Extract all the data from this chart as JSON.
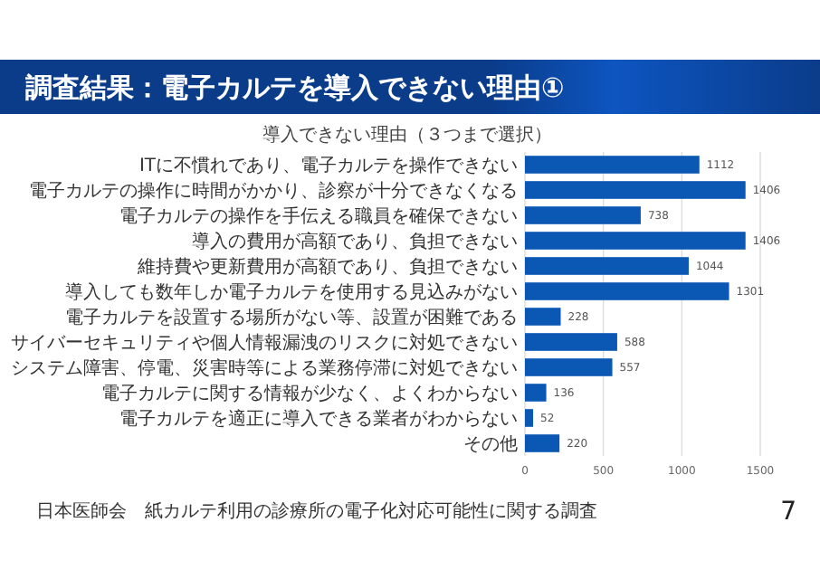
{
  "chart_data": {
    "type": "bar",
    "orientation": "horizontal",
    "title": "調査結果：電子カルテを導入できない理由①",
    "subtitle": "導入できない理由（３つまで選択）",
    "categories": [
      "ITに不慣れであり、電子カルテを操作できない",
      "電子カルテの操作に時間がかかり、診察が十分できなくなる",
      "電子カルテの操作を手伝える職員を確保できない",
      "導入の費用が高額であり、負担できない",
      "維持費や更新費用が高額であり、負担できない",
      "導入しても数年しか電子カルテを使用する見込みがない",
      "電子カルテを設置する場所がない等、設置が困難である",
      "サイバーセキュリティや個人情報漏洩のリスクに対処できない",
      "システム障害、停電、災害時等による業務停滞に対処できない",
      "電子カルテに関する情報が少なく、よくわからない",
      "電子カルテを適正に導入できる業者がわからない",
      "その他"
    ],
    "values": [
      1112,
      1406,
      738,
      1406,
      1044,
      1301,
      228,
      588,
      557,
      136,
      52,
      220
    ],
    "color": "#0b57b4",
    "data_labels": true,
    "xlim": [
      0,
      1500
    ],
    "xticks": [
      0,
      500,
      1000,
      1500
    ],
    "grid": "x",
    "annotations": [
      "日本医師会　紙カルテ利用の診療所の電子化対応可能性に関する調査",
      "7"
    ]
  }
}
